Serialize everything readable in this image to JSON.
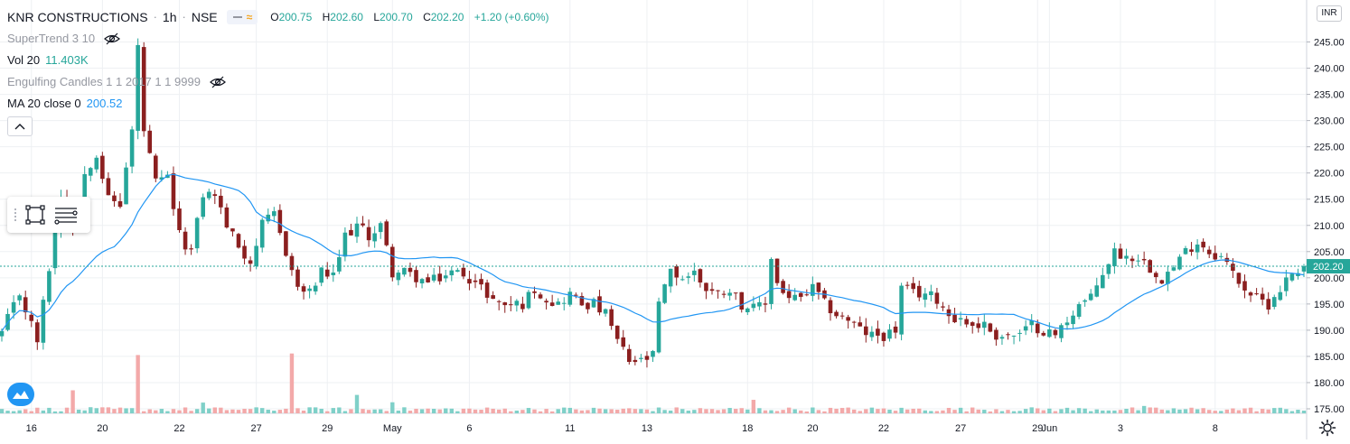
{
  "header": {
    "symbol": "KNR CONSTRUCTIONS",
    "interval": "1h",
    "exchange": "NSE",
    "ohlc": {
      "o_label": "O",
      "o": "200.75",
      "h_label": "H",
      "h": "202.60",
      "l_label": "L",
      "l": "200.70",
      "c_label": "C",
      "c": "202.20",
      "change": "+1.20 (+0.60%)"
    }
  },
  "indicators": {
    "supertrend": "SuperTrend 3 10",
    "vol": "Vol 20",
    "vol_value": "11.403K",
    "engulfing": "Engulfing Candles 1 1 2017 1 1 9999",
    "ma": "MA 20 close 0",
    "ma_value": "200.52"
  },
  "currency": "INR",
  "colors": {
    "up": "#26a69a",
    "down": "#8b1f1f",
    "ma": "#2196f3",
    "vol_up": "#7fd0c8",
    "vol_down": "#f3a9a9",
    "price_label_bg": "#26a69a",
    "grid": "#eef0f3"
  },
  "chart_data": {
    "type": "candlestick",
    "ylim": [
      173,
      248
    ],
    "y_ticks": [
      "175.00",
      "180.00",
      "185.00",
      "190.00",
      "195.00",
      "200.00",
      "205.00",
      "210.00",
      "215.00",
      "220.00",
      "225.00",
      "230.00",
      "235.00",
      "240.00",
      "245.00"
    ],
    "x_ticks": [
      {
        "label": "16",
        "index": 5
      },
      {
        "label": "20",
        "index": 17
      },
      {
        "label": "22",
        "index": 30
      },
      {
        "label": "27",
        "index": 43
      },
      {
        "label": "29",
        "index": 55
      },
      {
        "label": "May",
        "index": 66
      },
      {
        "label": "6",
        "index": 79
      },
      {
        "label": "11",
        "index": 96
      },
      {
        "label": "13",
        "index": 109
      },
      {
        "label": "18",
        "index": 126
      },
      {
        "label": "20",
        "index": 137
      },
      {
        "label": "22",
        "index": 149
      },
      {
        "label": "27",
        "index": 162
      },
      {
        "label": "29",
        "index": 175
      },
      {
        "label": "Jun",
        "index": 177
      },
      {
        "label": "3",
        "index": 189
      },
      {
        "label": "8",
        "index": 205
      }
    ],
    "last_price": "202.20",
    "last_price_value": 202.2,
    "anchors": [
      [
        0,
        189.5
      ],
      [
        3,
        197
      ],
      [
        6,
        188
      ],
      [
        8,
        202
      ],
      [
        10,
        216
      ],
      [
        12,
        210
      ],
      [
        14,
        220
      ],
      [
        16,
        224
      ],
      [
        18,
        215
      ],
      [
        20,
        214
      ],
      [
        22,
        228
      ],
      [
        23,
        244
      ],
      [
        24,
        228
      ],
      [
        26,
        218
      ],
      [
        28,
        219
      ],
      [
        30,
        208
      ],
      [
        32,
        205
      ],
      [
        34,
        216
      ],
      [
        36,
        216
      ],
      [
        38,
        210
      ],
      [
        40,
        206
      ],
      [
        42,
        203
      ],
      [
        44,
        210
      ],
      [
        46,
        212
      ],
      [
        48,
        205
      ],
      [
        50,
        198
      ],
      [
        52,
        197
      ],
      [
        54,
        201
      ],
      [
        56,
        200
      ],
      [
        58,
        208
      ],
      [
        60,
        210
      ],
      [
        62,
        208
      ],
      [
        64,
        210
      ],
      [
        66,
        201
      ],
      [
        68,
        201
      ],
      [
        70,
        200
      ],
      [
        72,
        199
      ],
      [
        74,
        200
      ],
      [
        76,
        201
      ],
      [
        78,
        201
      ],
      [
        80,
        199
      ],
      [
        82,
        197
      ],
      [
        84,
        195
      ],
      [
        86,
        195
      ],
      [
        88,
        195
      ],
      [
        90,
        198
      ],
      [
        92,
        196
      ],
      [
        94,
        195
      ],
      [
        96,
        197
      ],
      [
        98,
        195
      ],
      [
        100,
        195
      ],
      [
        102,
        193
      ],
      [
        104,
        188
      ],
      [
        106,
        184
      ],
      [
        108,
        184
      ],
      [
        110,
        185
      ],
      [
        111,
        195
      ],
      [
        113,
        201
      ],
      [
        115,
        200
      ],
      [
        117,
        201
      ],
      [
        119,
        198
      ],
      [
        121,
        197
      ],
      [
        123,
        198
      ],
      [
        125,
        195
      ],
      [
        127,
        194
      ],
      [
        129,
        195
      ],
      [
        130,
        204
      ],
      [
        131,
        199
      ],
      [
        133,
        196
      ],
      [
        135,
        196
      ],
      [
        137,
        198
      ],
      [
        139,
        195
      ],
      [
        141,
        193
      ],
      [
        143,
        192
      ],
      [
        145,
        190
      ],
      [
        147,
        189
      ],
      [
        149,
        189
      ],
      [
        151,
        190
      ],
      [
        152,
        198
      ],
      [
        154,
        197
      ],
      [
        156,
        197
      ],
      [
        158,
        196
      ],
      [
        160,
        193
      ],
      [
        162,
        192
      ],
      [
        164,
        191
      ],
      [
        166,
        191
      ],
      [
        168,
        189
      ],
      [
        170,
        189
      ],
      [
        172,
        189
      ],
      [
        174,
        191
      ],
      [
        176,
        190
      ],
      [
        178,
        189
      ],
      [
        180,
        192
      ],
      [
        182,
        195
      ],
      [
        184,
        196
      ],
      [
        186,
        201
      ],
      [
        188,
        205
      ],
      [
        190,
        204
      ],
      [
        192,
        204
      ],
      [
        194,
        202
      ],
      [
        196,
        200
      ],
      [
        198,
        202
      ],
      [
        200,
        205
      ],
      [
        202,
        207
      ],
      [
        204,
        205
      ],
      [
        206,
        204
      ],
      [
        208,
        201
      ],
      [
        210,
        198
      ],
      [
        212,
        196
      ],
      [
        214,
        195
      ],
      [
        216,
        198
      ],
      [
        218,
        201
      ],
      [
        220,
        202.2
      ]
    ],
    "volume_spikes": [
      {
        "index": 12,
        "value": 7.5,
        "dir": "down"
      },
      {
        "index": 23,
        "value": 19,
        "dir": "down"
      },
      {
        "index": 34,
        "value": 3.5,
        "dir": "up"
      },
      {
        "index": 49,
        "value": 19.5,
        "dir": "down"
      },
      {
        "index": 60,
        "value": 6,
        "dir": "up"
      },
      {
        "index": 66,
        "value": 3.6,
        "dir": "up"
      },
      {
        "index": 127,
        "value": 4.4,
        "dir": "down"
      },
      {
        "index": 193,
        "value": 2.4,
        "dir": "up"
      }
    ]
  }
}
